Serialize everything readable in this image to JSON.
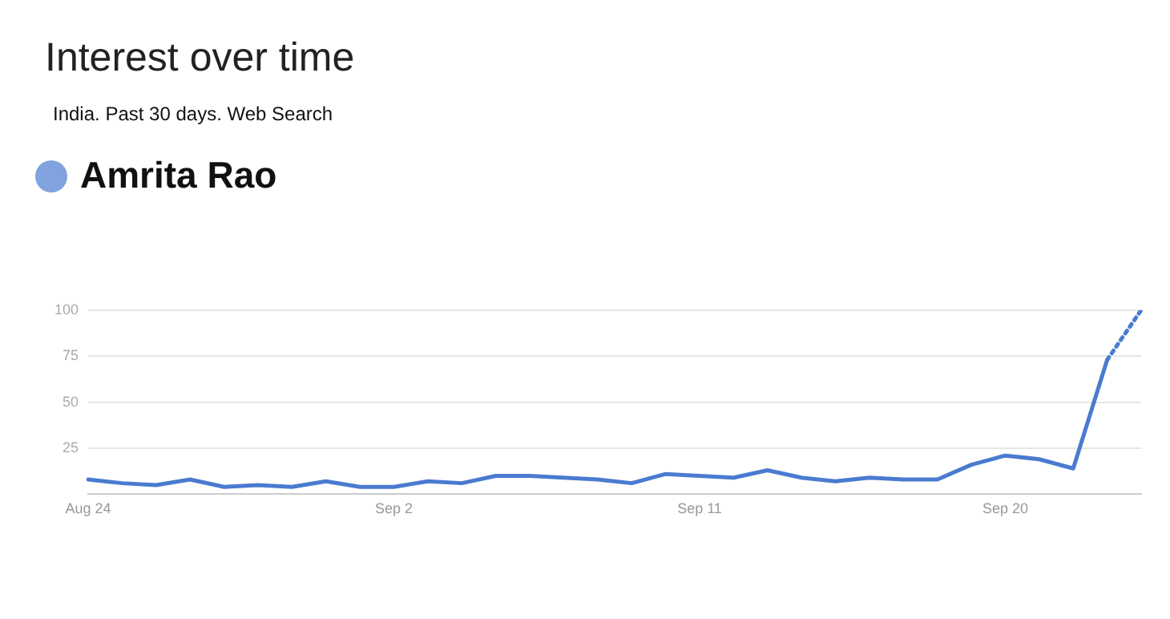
{
  "chart_data": {
    "type": "line",
    "title": "Interest over time",
    "subtitle": "India. Past 30 days. Web Search",
    "categories": [
      "Aug 24",
      null,
      null,
      null,
      null,
      null,
      null,
      null,
      null,
      "Sep 2",
      null,
      null,
      null,
      null,
      null,
      null,
      null,
      null,
      "Sep 11",
      null,
      null,
      null,
      null,
      null,
      null,
      null,
      null,
      "Sep 20",
      null,
      null,
      null,
      null
    ],
    "series": [
      {
        "name": "Amrita Rao",
        "color": "#4a7bd0",
        "values": [
          8,
          6,
          5,
          8,
          4,
          5,
          4,
          7,
          4,
          4,
          7,
          6,
          10,
          10,
          9,
          8,
          6,
          11,
          10,
          9,
          13,
          9,
          7,
          9,
          8,
          8,
          16,
          21,
          19,
          14,
          73,
          null
        ]
      },
      {
        "color": "#4a7bd0",
        "line_style": "dotted",
        "values": [
          null,
          null,
          null,
          null,
          null,
          null,
          null,
          null,
          null,
          null,
          null,
          null,
          null,
          null,
          null,
          null,
          null,
          null,
          null,
          null,
          null,
          null,
          null,
          null,
          null,
          null,
          null,
          null,
          null,
          null,
          73,
          100
        ]
      }
    ],
    "ylim": [
      0,
      100
    ],
    "yticks": [
      {
        "value": 0,
        "label": null
      },
      25,
      50,
      75,
      100
    ],
    "grid": "y",
    "legend": "top left",
    "marker": "none"
  }
}
